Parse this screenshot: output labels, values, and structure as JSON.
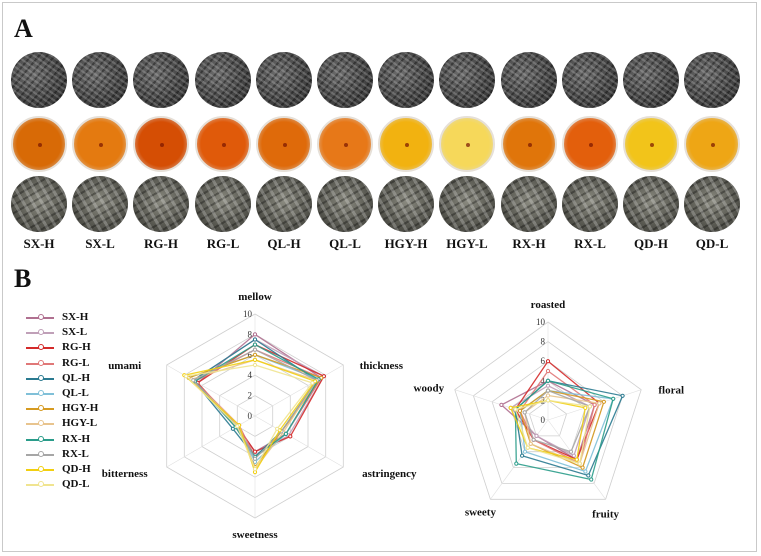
{
  "panel_a_letter": "A",
  "panel_b_letter": "B",
  "samples": [
    "SX-H",
    "SX-L",
    "RG-H",
    "RG-L",
    "QL-H",
    "QL-L",
    "HGY-H",
    "HGY-L",
    "RX-H",
    "RX-L",
    "QD-H",
    "QD-L"
  ],
  "liquor_colors": [
    "#d86a06",
    "#e47a10",
    "#d54e04",
    "#e05a0a",
    "#df6a0a",
    "#e77818",
    "#f2b210",
    "#f6d85a",
    "#e0750a",
    "#e35f0c",
    "#f2c41a",
    "#eea615"
  ],
  "series_colors": [
    "#b07090",
    "#c0a0b8",
    "#d42a2a",
    "#e07878",
    "#2a7a90",
    "#80c0d8",
    "#d69a20",
    "#e8c48e",
    "#2a9c8a",
    "#a6a6a6",
    "#f2cf10",
    "#f0e490"
  ],
  "chart_data": [
    {
      "type": "radar",
      "axes": [
        "mellow",
        "thickness",
        "astringency",
        "sweetness",
        "bitterness",
        "umami"
      ],
      "scale": [
        0,
        10
      ],
      "tick_labels": [
        "0",
        "2",
        "4",
        "6",
        "8",
        "10"
      ],
      "series": [
        {
          "name": "SX-H",
          "values": [
            8.0,
            7.5,
            3.5,
            3.5,
            2.0,
            6.5
          ]
        },
        {
          "name": "SX-L",
          "values": [
            7.5,
            7.8,
            3.8,
            3.8,
            2.2,
            7.0
          ]
        },
        {
          "name": "RG-H",
          "values": [
            7.0,
            7.8,
            4.0,
            3.5,
            2.0,
            6.5
          ]
        },
        {
          "name": "RG-L",
          "values": [
            6.5,
            7.5,
            3.5,
            4.0,
            1.8,
            6.8
          ]
        },
        {
          "name": "QL-H",
          "values": [
            7.5,
            7.0,
            3.0,
            4.0,
            2.5,
            7.0
          ]
        },
        {
          "name": "QL-L",
          "values": [
            6.0,
            7.2,
            3.5,
            4.5,
            2.0,
            7.5
          ]
        },
        {
          "name": "HGY-H",
          "values": [
            6.0,
            7.5,
            3.0,
            5.0,
            2.0,
            7.5
          ]
        },
        {
          "name": "HGY-L",
          "values": [
            5.5,
            7.0,
            3.2,
            5.2,
            1.8,
            7.2
          ]
        },
        {
          "name": "RX-H",
          "values": [
            7.0,
            7.2,
            3.5,
            4.0,
            2.2,
            6.8
          ]
        },
        {
          "name": "RX-L",
          "values": [
            6.5,
            7.0,
            3.0,
            4.2,
            2.0,
            7.0
          ]
        },
        {
          "name": "QD-H",
          "values": [
            5.5,
            6.8,
            2.8,
            5.5,
            1.8,
            8.0
          ]
        },
        {
          "name": "QD-L",
          "values": [
            5.0,
            6.5,
            2.5,
            5.2,
            2.0,
            7.8
          ]
        }
      ]
    },
    {
      "type": "radar",
      "axes": [
        "roasted",
        "floral",
        "fruity",
        "sweety",
        "woody"
      ],
      "scale": [
        0,
        10
      ],
      "tick_labels": [
        "0",
        "2",
        "4",
        "6",
        "8",
        "10"
      ],
      "series": [
        {
          "name": "SX-H",
          "values": [
            4.0,
            5.0,
            5.0,
            2.0,
            5.0
          ]
        },
        {
          "name": "SX-L",
          "values": [
            3.5,
            4.5,
            4.5,
            2.0,
            4.0
          ]
        },
        {
          "name": "RG-H",
          "values": [
            6.0,
            5.5,
            5.0,
            2.5,
            3.5
          ]
        },
        {
          "name": "RG-L",
          "values": [
            5.0,
            5.0,
            5.5,
            2.5,
            3.0
          ]
        },
        {
          "name": "QL-H",
          "values": [
            4.0,
            8.0,
            7.0,
            4.5,
            3.5
          ]
        },
        {
          "name": "QL-L",
          "values": [
            3.0,
            7.0,
            6.5,
            4.0,
            3.0
          ]
        },
        {
          "name": "HGY-H",
          "values": [
            3.0,
            6.0,
            6.0,
            3.0,
            3.0
          ]
        },
        {
          "name": "HGY-L",
          "values": [
            2.5,
            5.5,
            5.5,
            3.0,
            2.5
          ]
        },
        {
          "name": "RX-H",
          "values": [
            4.0,
            7.0,
            7.5,
            5.5,
            3.5
          ]
        },
        {
          "name": "RX-L",
          "values": [
            3.0,
            4.5,
            4.0,
            2.5,
            2.5
          ]
        },
        {
          "name": "QD-H",
          "values": [
            2.0,
            4.0,
            5.0,
            3.5,
            4.0
          ]
        },
        {
          "name": "QD-L",
          "values": [
            2.0,
            4.5,
            5.5,
            3.5,
            3.5
          ]
        }
      ]
    }
  ]
}
